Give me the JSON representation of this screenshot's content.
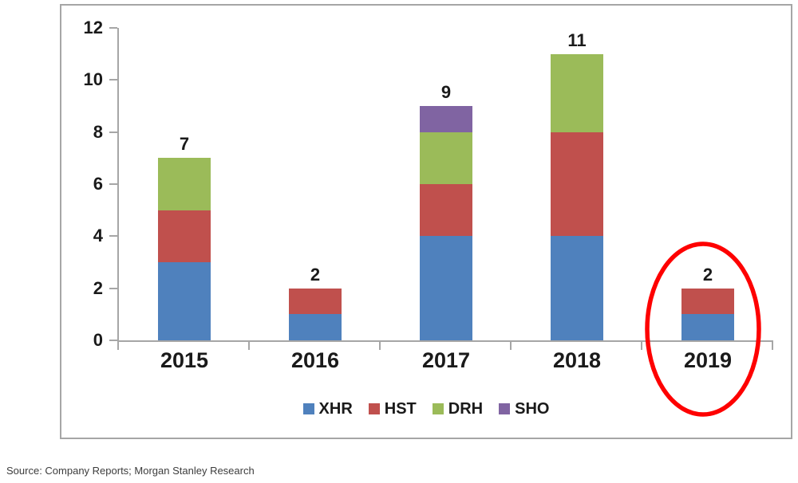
{
  "chart_data": {
    "type": "bar",
    "stacked": true,
    "title": "",
    "xlabel": "",
    "ylabel": "",
    "categories": [
      "2015",
      "2016",
      "2017",
      "2018",
      "2019"
    ],
    "series": [
      {
        "name": "XHR",
        "color": "#4f81bd",
        "values": [
          3,
          1,
          4,
          4,
          1
        ]
      },
      {
        "name": "HST",
        "color": "#c0504d",
        "values": [
          2,
          1,
          2,
          4,
          1
        ]
      },
      {
        "name": "DRH",
        "color": "#9bbb59",
        "values": [
          2,
          0,
          2,
          3,
          0
        ]
      },
      {
        "name": "SHO",
        "color": "#8064a2",
        "values": [
          0,
          0,
          1,
          0,
          0
        ]
      }
    ],
    "totals": [
      7,
      2,
      9,
      11,
      2
    ],
    "total_labels": [
      "7",
      "2",
      "9",
      "11",
      "2"
    ],
    "ylim": [
      0,
      12
    ],
    "yticks": [
      "0",
      "2",
      "4",
      "6",
      "8",
      "10",
      "12"
    ],
    "ytick_values": [
      0,
      2,
      4,
      6,
      8,
      10,
      12
    ],
    "grid": false,
    "legend_position": "bottom"
  },
  "annotation": {
    "shape": "ellipse",
    "target_category": "2019",
    "color": "#fe0000"
  },
  "source_note": "Source: Company Reports; Morgan Stanley Research",
  "colors": {
    "axis": "#a6a6a6",
    "frame_border": "#a6a6a6",
    "text": "#1a1a1a",
    "background": "#ffffff"
  }
}
